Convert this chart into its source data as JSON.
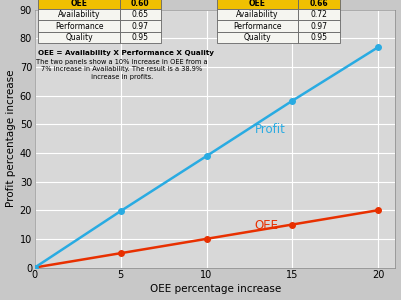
{
  "oee_x": [
    0,
    5,
    10,
    15,
    20
  ],
  "oee_y": [
    0,
    5,
    10,
    15,
    20
  ],
  "profit_x": [
    0,
    5,
    10,
    15,
    20
  ],
  "profit_y": [
    0,
    19.7,
    38.9,
    58.2,
    76.9
  ],
  "oee_color": "#e83000",
  "profit_color": "#29abe2",
  "bg_color": "#c8c8c8",
  "plot_bg": "#d8d8d8",
  "xlabel": "OEE percentage increase",
  "ylabel": "Profit percentage increase",
  "xlim": [
    0,
    21
  ],
  "ylim": [
    0,
    90
  ],
  "xticks": [
    0,
    5,
    10,
    15,
    20
  ],
  "yticks": [
    0,
    10,
    20,
    30,
    40,
    50,
    60,
    70,
    80,
    90
  ],
  "table1_header": [
    "OEE",
    "0.60"
  ],
  "table1_rows": [
    [
      "Availability",
      "0.65"
    ],
    [
      "Performance",
      "0.97"
    ],
    [
      "Quality",
      "0.95"
    ]
  ],
  "table2_header": [
    "OEE",
    "0.66"
  ],
  "table2_rows": [
    [
      "Availability",
      "0.72"
    ],
    [
      "Performance",
      "0.97"
    ],
    [
      "Quality",
      "0.95"
    ]
  ],
  "annotation_bold": "OEE = Availability X Performance X Quality",
  "annotation_normal": "The two panels show a 10% increase in OEE from a\n7% increase in Availability. The result is a 38.9%\n increase in profits.",
  "profit_label": "Profit",
  "oee_label": "OEE",
  "header_bg": "#f0c000",
  "cell_bg": "#f5f5f0",
  "gridcolor": "#ffffff",
  "font_family": "DejaVu Sans"
}
